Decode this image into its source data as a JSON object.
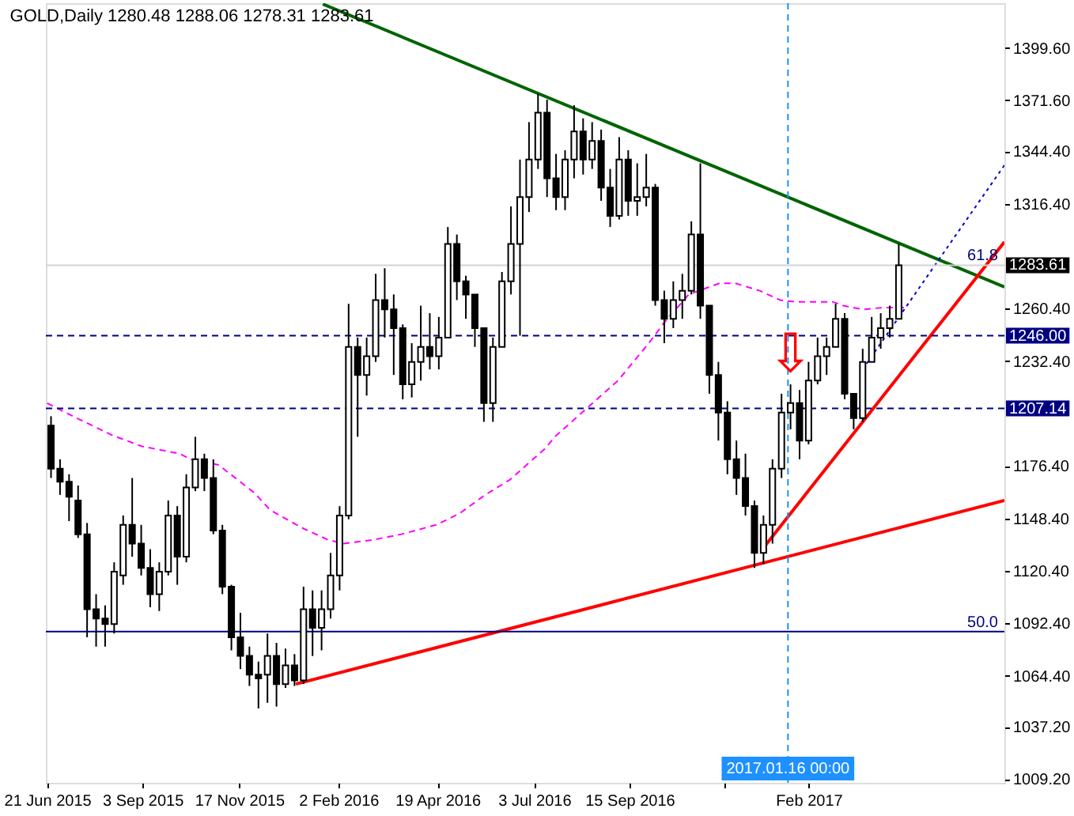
{
  "chart_data": {
    "type": "candlestick",
    "title": "GOLD,Daily 1280.48 1288.06 1278.31 1283.61",
    "color": "#000000",
    "xlim": [
      "2015-06-20",
      "2017-07-03"
    ],
    "ylim": [
      1007.3,
      1423.5
    ],
    "xticks": [
      {
        "value": "2015-06-21",
        "label": "21 Jun 2015"
      },
      {
        "value": "2015-09-03",
        "label": "3 Sep 2015"
      },
      {
        "value": "2015-11-17",
        "label": "17 Nov 2015"
      },
      {
        "value": "2016-02-02",
        "label": "2 Feb 2016"
      },
      {
        "value": "2016-04-19",
        "label": "19 Apr 2016"
      },
      {
        "value": "2016-07-03",
        "label": "3 Jul 2016"
      },
      {
        "value": "2016-09-15",
        "label": "15 Sep 2016"
      },
      {
        "value": "2016-11-28",
        "label": null
      },
      {
        "value": "2017-02",
        "label": "Feb 2017"
      }
    ],
    "yticks": [
      {
        "value": 1399.6,
        "label": "1399.60"
      },
      {
        "value": 1371.6,
        "label": "1371.60"
      },
      {
        "value": 1344.4,
        "label": "1344.40"
      },
      {
        "value": 1316.4,
        "label": "1316.40"
      },
      {
        "value": 1260.4,
        "label": "1260.40"
      },
      {
        "value": 1232.4,
        "label": "1232.40"
      },
      {
        "value": 1176.4,
        "label": "1176.40"
      },
      {
        "value": 1148.4,
        "label": "1148.40"
      },
      {
        "value": 1120.4,
        "label": "1120.40"
      },
      {
        "value": 1092.4,
        "label": "1092.40"
      },
      {
        "value": 1064.4,
        "label": "1064.40"
      },
      {
        "value": 1037.2,
        "label": "1037.20"
      },
      {
        "value": 1009.2,
        "label": "1009.20"
      }
    ],
    "x": [
      "2015-06-24",
      "2015-07-01",
      "2015-07-08",
      "2015-07-15",
      "2015-07-22",
      "2015-07-29",
      "2015-08-05",
      "2015-08-12",
      "2015-08-19",
      "2015-08-26",
      "2015-09-02",
      "2015-09-09",
      "2015-09-16",
      "2015-09-23",
      "2015-09-30",
      "2015-10-07",
      "2015-10-14",
      "2015-10-21",
      "2015-10-28",
      "2015-11-04",
      "2015-11-11",
      "2015-11-18",
      "2015-11-25",
      "2015-12-02",
      "2015-12-09",
      "2015-12-16",
      "2015-12-23",
      "2015-12-30",
      "2016-01-06",
      "2016-01-13",
      "2016-01-20",
      "2016-01-27",
      "2016-02-03",
      "2016-02-10",
      "2016-02-17",
      "2016-02-24",
      "2016-03-02",
      "2016-03-09",
      "2016-03-16",
      "2016-03-23",
      "2016-03-30",
      "2016-04-06",
      "2016-04-13",
      "2016-04-20",
      "2016-04-27",
      "2016-05-04",
      "2016-05-11",
      "2016-05-18",
      "2016-05-25",
      "2016-06-01",
      "2016-06-08",
      "2016-06-15",
      "2016-06-22",
      "2016-06-29",
      "2016-07-06",
      "2016-07-13",
      "2016-07-20",
      "2016-07-27",
      "2016-08-03",
      "2016-08-10",
      "2016-08-17",
      "2016-08-24",
      "2016-08-31",
      "2016-09-07",
      "2016-09-14",
      "2016-09-21",
      "2016-09-28",
      "2016-10-05",
      "2016-10-12",
      "2016-10-19",
      "2016-10-26",
      "2016-11-02",
      "2016-11-09",
      "2016-11-16",
      "2016-11-23",
      "2016-11-30",
      "2016-12-07",
      "2016-12-14",
      "2016-12-21",
      "2016-12-28",
      "2017-01-04",
      "2017-01-11",
      "2017-01-18",
      "2017-01-25",
      "2017-02-01",
      "2017-02-08",
      "2017-02-15",
      "2017-02-22",
      "2017-03-01",
      "2017-03-08",
      "2017-03-15",
      "2017-03-22",
      "2017-03-29",
      "2017-04-05",
      "2017-04-12"
    ],
    "ohlc": [
      [
        1198,
        1203,
        1170,
        1175
      ],
      [
        1175,
        1180,
        1161,
        1168
      ],
      [
        1168,
        1172,
        1147,
        1160
      ],
      [
        1158,
        1166,
        1138,
        1140
      ],
      [
        1140,
        1146,
        1085,
        1100
      ],
      [
        1100,
        1108,
        1080,
        1095
      ],
      [
        1095,
        1102,
        1080,
        1092
      ],
      [
        1092,
        1125,
        1087,
        1120
      ],
      [
        1118,
        1150,
        1113,
        1145
      ],
      [
        1145,
        1170,
        1128,
        1135
      ],
      [
        1135,
        1145,
        1118,
        1122
      ],
      [
        1122,
        1132,
        1101,
        1108
      ],
      [
        1108,
        1125,
        1099,
        1120
      ],
      [
        1120,
        1158,
        1118,
        1150
      ],
      [
        1150,
        1155,
        1113,
        1128
      ],
      [
        1128,
        1172,
        1125,
        1165
      ],
      [
        1165,
        1192,
        1163,
        1180
      ],
      [
        1180,
        1183,
        1163,
        1170
      ],
      [
        1170,
        1180,
        1140,
        1142
      ],
      [
        1142,
        1145,
        1108,
        1112
      ],
      [
        1112,
        1113,
        1078,
        1085
      ],
      [
        1085,
        1098,
        1068,
        1075
      ],
      [
        1075,
        1080,
        1059,
        1065
      ],
      [
        1065,
        1072,
        1047,
        1063
      ],
      [
        1065,
        1087,
        1050,
        1075
      ],
      [
        1075,
        1082,
        1048,
        1060
      ],
      [
        1060,
        1079,
        1058,
        1070
      ],
      [
        1070,
        1076,
        1059,
        1062
      ],
      [
        1062,
        1112,
        1060,
        1100
      ],
      [
        1100,
        1110,
        1075,
        1090
      ],
      [
        1090,
        1110,
        1078,
        1100
      ],
      [
        1100,
        1130,
        1095,
        1118
      ],
      [
        1118,
        1155,
        1110,
        1150
      ],
      [
        1150,
        1263,
        1148,
        1240
      ],
      [
        1240,
        1245,
        1192,
        1225
      ],
      [
        1225,
        1245,
        1214,
        1235
      ],
      [
        1235,
        1279,
        1232,
        1265
      ],
      [
        1265,
        1282,
        1245,
        1260
      ],
      [
        1260,
        1268,
        1225,
        1250
      ],
      [
        1250,
        1252,
        1212,
        1220
      ],
      [
        1220,
        1242,
        1213,
        1232
      ],
      [
        1232,
        1262,
        1222,
        1240
      ],
      [
        1240,
        1258,
        1228,
        1235
      ],
      [
        1235,
        1256,
        1228,
        1245
      ],
      [
        1245,
        1304,
        1245,
        1295
      ],
      [
        1295,
        1300,
        1265,
        1275
      ],
      [
        1275,
        1278,
        1255,
        1268
      ],
      [
        1268,
        1268,
        1240,
        1250
      ],
      [
        1250,
        1250,
        1200,
        1210
      ],
      [
        1210,
        1245,
        1200,
        1240
      ],
      [
        1240,
        1280,
        1240,
        1275
      ],
      [
        1275,
        1315,
        1268,
        1295
      ],
      [
        1295,
        1340,
        1246,
        1320
      ],
      [
        1320,
        1360,
        1312,
        1340
      ],
      [
        1340,
        1375,
        1335,
        1365
      ],
      [
        1365,
        1372,
        1320,
        1330
      ],
      [
        1330,
        1343,
        1313,
        1320
      ],
      [
        1320,
        1345,
        1313,
        1340
      ],
      [
        1340,
        1369,
        1330,
        1355
      ],
      [
        1355,
        1362,
        1332,
        1340
      ],
      [
        1340,
        1360,
        1335,
        1350
      ],
      [
        1350,
        1356,
        1318,
        1325
      ],
      [
        1325,
        1335,
        1304,
        1310
      ],
      [
        1310,
        1352,
        1308,
        1340
      ],
      [
        1340,
        1345,
        1310,
        1318
      ],
      [
        1318,
        1338,
        1310,
        1320
      ],
      [
        1320,
        1343,
        1315,
        1325
      ],
      [
        1325,
        1327,
        1262,
        1265
      ],
      [
        1265,
        1270,
        1242,
        1255
      ],
      [
        1255,
        1275,
        1250,
        1265
      ],
      [
        1265,
        1279,
        1255,
        1270
      ],
      [
        1270,
        1307,
        1268,
        1300
      ],
      [
        1300,
        1338,
        1255,
        1262
      ],
      [
        1262,
        1262,
        1215,
        1225
      ],
      [
        1225,
        1232,
        1190,
        1205
      ],
      [
        1205,
        1211,
        1172,
        1180
      ],
      [
        1180,
        1190,
        1161,
        1170
      ],
      [
        1170,
        1183,
        1150,
        1155
      ],
      [
        1155,
        1158,
        1122,
        1130
      ],
      [
        1130,
        1150,
        1124,
        1145
      ],
      [
        1145,
        1180,
        1135,
        1175
      ],
      [
        1175,
        1215,
        1170,
        1205
      ],
      [
        1205,
        1220,
        1196,
        1210
      ],
      [
        1210,
        1217,
        1180,
        1190
      ],
      [
        1190,
        1232,
        1188,
        1222
      ],
      [
        1222,
        1245,
        1220,
        1235
      ],
      [
        1235,
        1245,
        1225,
        1240
      ],
      [
        1240,
        1263,
        1240,
        1255
      ],
      [
        1255,
        1258,
        1212,
        1215
      ],
      [
        1215,
        1215,
        1196,
        1202
      ],
      [
        1202,
        1239,
        1200,
        1232
      ],
      [
        1232,
        1256,
        1232,
        1245
      ],
      [
        1245,
        1258,
        1239,
        1250
      ],
      [
        1250,
        1262,
        1245,
        1255
      ],
      [
        1255,
        1295,
        1255,
        1283.61
      ]
    ],
    "series": [
      {
        "type": "line",
        "color": "#ff00ff",
        "line_style": "dashed",
        "x": [
          "2015-06-21",
          "2015-07-11",
          "2015-08-10",
          "2015-09-02",
          "2015-10-02",
          "2015-10-10",
          "2015-11-01",
          "2015-11-29",
          "2015-12-11",
          "2015-12-29",
          "2016-01-06",
          "2016-01-25",
          "2016-02-06",
          "2016-02-29",
          "2016-03-22",
          "2016-04-18",
          "2016-05-06",
          "2016-05-26",
          "2016-06-14",
          "2016-07-12",
          "2016-07-19",
          "2016-09-06",
          "2016-09-30",
          "2016-10-12",
          "2016-10-31",
          "2016-11-24",
          "2016-12-06",
          "2016-12-25",
          "2017-01-10",
          "2017-01-22",
          "2017-01-27",
          "2017-02-20",
          "2017-02-28",
          "2017-03-15",
          "2017-03-31",
          "2017-04-16"
        ],
        "values": [
          1210,
          1203,
          1193,
          1187,
          1183,
          1180,
          1177,
          1162,
          1153,
          1146,
          1143,
          1137,
          1135,
          1137,
          1140,
          1145,
          1151,
          1161,
          1169,
          1186,
          1192,
          1222,
          1242,
          1253,
          1268,
          1274,
          1274,
          1270,
          1265,
          1264,
          1264,
          1264,
          1262,
          1260,
          1261,
          1261
        ]
      },
      {
        "type": "line",
        "color": "#006400",
        "x": [
          "2016-01-21",
          "2017-07-03"
        ],
        "values": [
          1423,
          1272
        ]
      },
      {
        "type": "line",
        "color": "#ff0000",
        "x": [
          "2015-12-31",
          "2017-07-03"
        ],
        "values": [
          1060,
          1158
        ]
      },
      {
        "type": "line",
        "color": "#ff0000",
        "x": [
          "2016-12-26",
          "2017-07-03"
        ],
        "values": [
          1131,
          1296
        ]
      },
      {
        "type": "line",
        "color": "#0000cd",
        "line_style": "dotted",
        "x": [
          "2017-03-18",
          "2017-07-03"
        ],
        "values": [
          1231,
          1337
        ]
      }
    ],
    "ref_lines": [
      {
        "axis": "y",
        "value": 1283.61,
        "label": "1283.61",
        "color": "#d3d3d3"
      },
      {
        "axis": "y",
        "value": 1246.0,
        "label": "1246.00",
        "color": "#000080",
        "line_style": "dashed"
      },
      {
        "axis": "y",
        "value": 1207.14,
        "label": "1207.14",
        "color": "#000080",
        "line_style": "dashed"
      },
      {
        "axis": "y",
        "value": 1088,
        "color": "#000080"
      },
      {
        "axis": "x",
        "value": "2017-01-16",
        "label": "2017.01.16 00:00",
        "color": "#1e90ff",
        "line_style": "dashed"
      }
    ],
    "annotations": [
      {
        "text": "61.8",
        "x": "2017-07-03",
        "y": 1283.61
      },
      {
        "text": "50.0",
        "x": "2017-07-03",
        "y": 1088
      },
      {
        "text": "⇩",
        "x": "2017-01-18",
        "y": 1220
      }
    ]
  }
}
